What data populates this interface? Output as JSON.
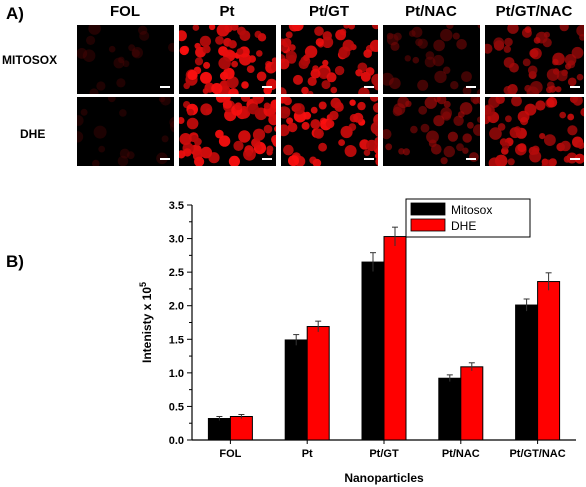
{
  "panel_a": {
    "label": "A)",
    "columns": [
      "FOL",
      "Pt",
      "Pt/GT",
      "Pt/NAC",
      "Pt/GT/NAC"
    ],
    "rows": [
      "MITOSOX",
      "DHE"
    ],
    "image_intensity": [
      [
        0.12,
        1.0,
        0.95,
        0.35,
        0.7
      ],
      [
        0.1,
        1.0,
        1.0,
        0.55,
        0.85
      ]
    ]
  },
  "panel_b": {
    "label": "B)"
  },
  "chart_data": {
    "type": "bar",
    "categories": [
      "FOL",
      "Pt",
      "Pt/GT",
      "Pt/NAC",
      "Pt/GT/NAC"
    ],
    "series": [
      {
        "name": "Mitosox",
        "color": "#000000",
        "values": [
          0.32,
          1.49,
          2.65,
          0.92,
          2.01
        ],
        "errors": [
          0.03,
          0.08,
          0.14,
          0.05,
          0.09
        ]
      },
      {
        "name": "DHE",
        "color": "#ff0000",
        "values": [
          0.35,
          1.69,
          3.03,
          1.09,
          2.36
        ],
        "errors": [
          0.03,
          0.08,
          0.14,
          0.06,
          0.13
        ]
      }
    ],
    "xlabel": "Nanoparticles",
    "ylabel_main": "Intenisty x 10",
    "ylabel_sup": "5",
    "ylim": [
      0,
      3.5
    ],
    "yticks": [
      "0.0",
      "0.5",
      "1.0",
      "1.5",
      "2.0",
      "2.5",
      "3.0",
      "3.5"
    ],
    "legend_position": "top-right"
  }
}
